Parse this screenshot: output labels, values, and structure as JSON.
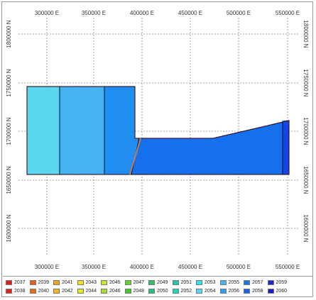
{
  "map": {
    "x_ticks": [
      "300000 E",
      "350000 E",
      "400000 E",
      "450000 E",
      "500000 E",
      "550000 E"
    ],
    "y_ticks": [
      "1800000 N",
      "1750000 N",
      "1700000 N",
      "1650000 N",
      "1600000 N"
    ],
    "zones": [
      {
        "name": "zone-2053",
        "color": "#5ad6ee"
      },
      {
        "name": "zone-2054",
        "color": "#45b4f0"
      },
      {
        "name": "zone-2055",
        "color": "#1f8ef0"
      },
      {
        "name": "zone-2056",
        "color": "#1570ee"
      },
      {
        "name": "zone-2057",
        "color": "#1346e6"
      }
    ]
  },
  "legend": {
    "items": [
      {
        "label": "2037",
        "color": "#e01b1b"
      },
      {
        "label": "2038",
        "color": "#e61e1e"
      },
      {
        "label": "2039",
        "color": "#ef5a18"
      },
      {
        "label": "2040",
        "color": "#f06a12"
      },
      {
        "label": "2041",
        "color": "#f5a31a"
      },
      {
        "label": "2042",
        "color": "#f7b61e"
      },
      {
        "label": "2043",
        "color": "#f3e11c"
      },
      {
        "label": "2044",
        "color": "#e3ec1f"
      },
      {
        "label": "2045",
        "color": "#c9ea21"
      },
      {
        "label": "2046",
        "color": "#a8e024"
      },
      {
        "label": "2047",
        "color": "#63d524"
      },
      {
        "label": "2048",
        "color": "#3dcc2a"
      },
      {
        "label": "2049",
        "color": "#27c46a"
      },
      {
        "label": "2050",
        "color": "#20c37d"
      },
      {
        "label": "2051",
        "color": "#1ccba6"
      },
      {
        "label": "2052",
        "color": "#1ed6bd"
      },
      {
        "label": "2053",
        "color": "#2fe2ea"
      },
      {
        "label": "2054",
        "color": "#55d8f0"
      },
      {
        "label": "2055",
        "color": "#45b4f0"
      },
      {
        "label": "2056",
        "color": "#2f9ef2"
      },
      {
        "label": "2057",
        "color": "#1f73ee"
      },
      {
        "label": "2058",
        "color": "#1a5fe8"
      },
      {
        "label": "2059",
        "color": "#1a28d6"
      },
      {
        "label": "2060",
        "color": "#1620c8"
      }
    ]
  }
}
